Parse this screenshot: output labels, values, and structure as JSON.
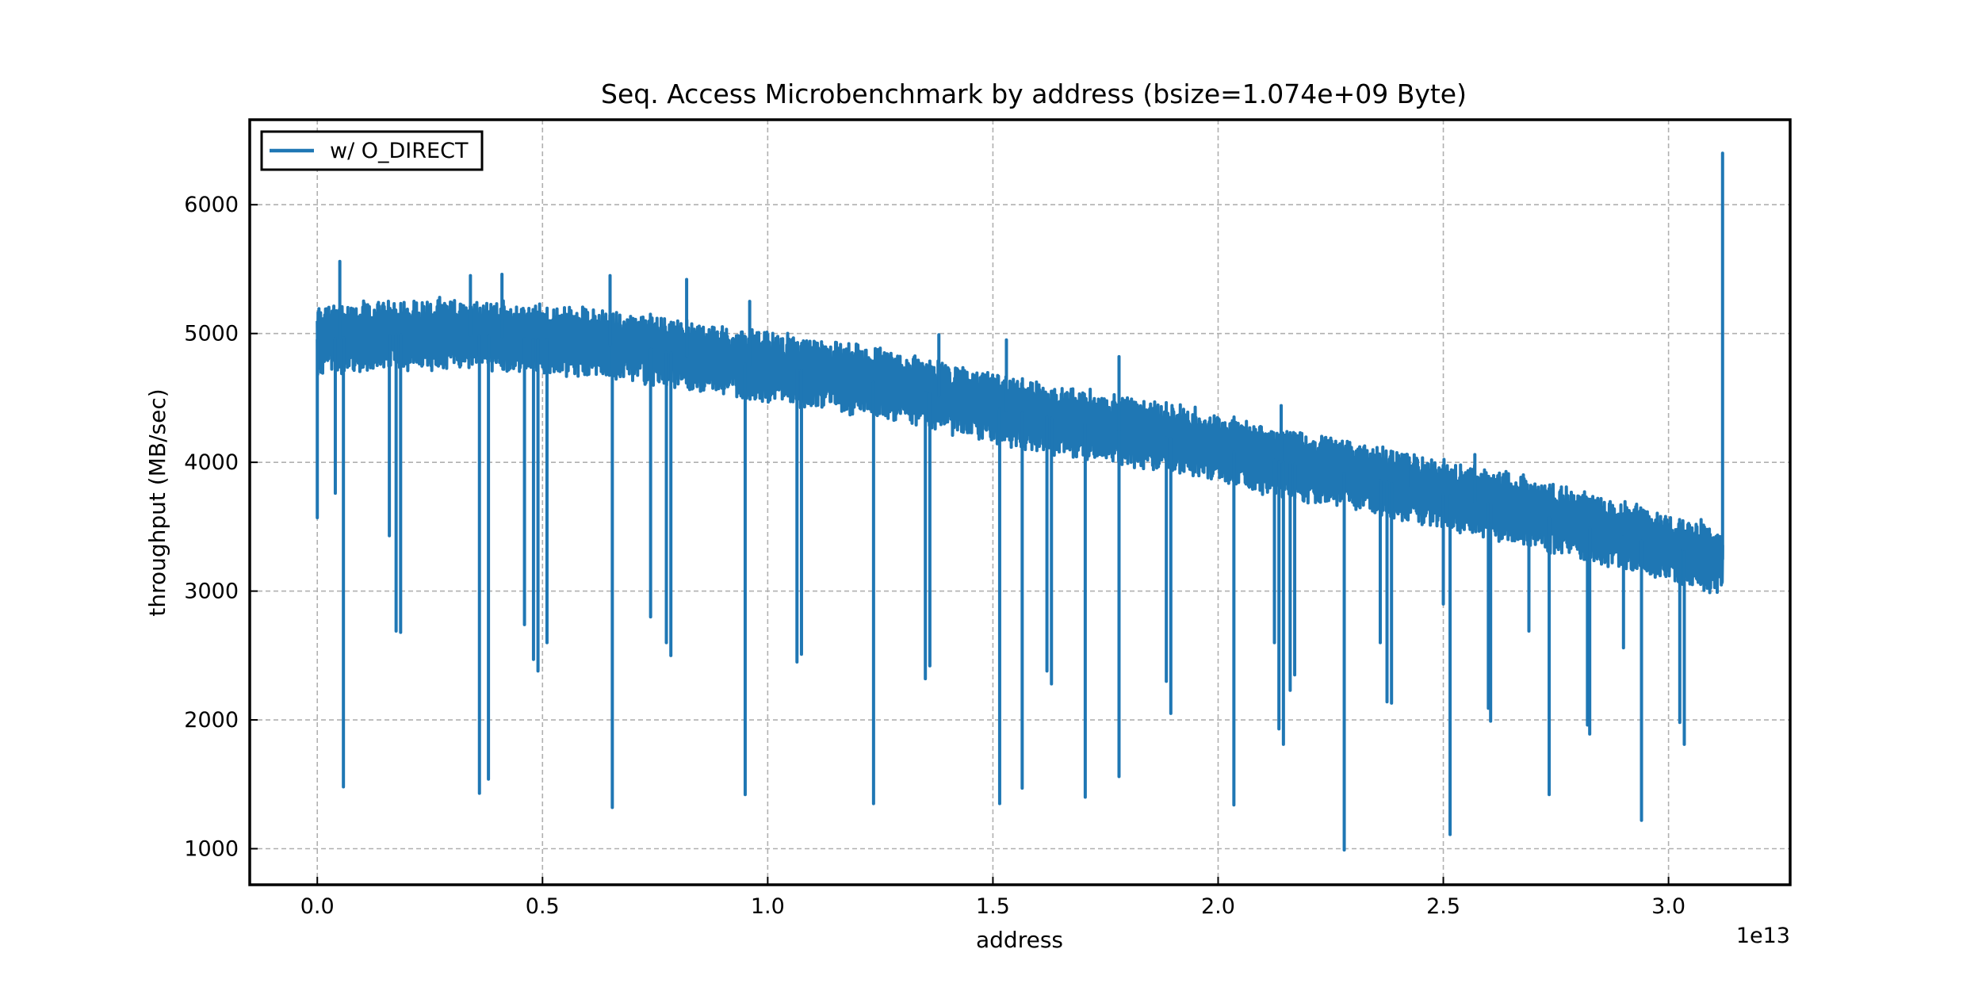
{
  "chart_data": {
    "type": "line",
    "title": "Seq. Access Microbenchmark by address (bsize=1.074e+09 Byte)",
    "xlabel": "address",
    "ylabel": "throughput (MB/sec)",
    "x_offset_label": "1e13",
    "x_scale": 10000000000000.0,
    "xlim": [
      -0.15,
      3.27
    ],
    "ylim": [
      720,
      6660
    ],
    "x_ticks": [
      0.0,
      0.5,
      1.0,
      1.5,
      2.0,
      2.5,
      3.0
    ],
    "x_tick_labels": [
      "0.0",
      "0.5",
      "1.0",
      "1.5",
      "2.0",
      "2.5",
      "3.0"
    ],
    "y_ticks": [
      1000,
      2000,
      3000,
      4000,
      5000,
      6000
    ],
    "y_tick_labels": [
      "1000",
      "2000",
      "3000",
      "4000",
      "5000",
      "6000"
    ],
    "grid": true,
    "legend_position": "top-left",
    "color": "#1f77b4",
    "series": [
      {
        "name": "w/ O_DIRECT",
        "x_units": "1e13 address",
        "trend": {
          "x": [
            0.0,
            0.1,
            0.3,
            0.5,
            0.7,
            0.9,
            1.1,
            1.3,
            1.5,
            1.7,
            1.9,
            2.1,
            2.3,
            2.5,
            2.7,
            2.9,
            3.1,
            3.12
          ],
          "y": [
            4950,
            4980,
            5000,
            4950,
            4900,
            4780,
            4700,
            4580,
            4420,
            4300,
            4180,
            4030,
            3900,
            3750,
            3600,
            3420,
            3250,
            3250
          ]
        },
        "dips": [
          {
            "x": 0.0,
            "y": 3570
          },
          {
            "x": 0.04,
            "y": 3760
          },
          {
            "x": 0.058,
            "y": 1480
          },
          {
            "x": 0.16,
            "y": 3430
          },
          {
            "x": 0.175,
            "y": 2690
          },
          {
            "x": 0.185,
            "y": 2680
          },
          {
            "x": 0.36,
            "y": 1430
          },
          {
            "x": 0.38,
            "y": 1540
          },
          {
            "x": 0.46,
            "y": 2740
          },
          {
            "x": 0.48,
            "y": 2470
          },
          {
            "x": 0.49,
            "y": 2380
          },
          {
            "x": 0.51,
            "y": 2600
          },
          {
            "x": 0.655,
            "y": 1320
          },
          {
            "x": 0.74,
            "y": 2800
          },
          {
            "x": 0.775,
            "y": 2600
          },
          {
            "x": 0.785,
            "y": 2500
          },
          {
            "x": 0.95,
            "y": 1420
          },
          {
            "x": 1.065,
            "y": 2450
          },
          {
            "x": 1.075,
            "y": 2510
          },
          {
            "x": 1.235,
            "y": 1350
          },
          {
            "x": 1.35,
            "y": 2320
          },
          {
            "x": 1.36,
            "y": 2420
          },
          {
            "x": 1.515,
            "y": 1350
          },
          {
            "x": 1.565,
            "y": 1470
          },
          {
            "x": 1.62,
            "y": 2380
          },
          {
            "x": 1.63,
            "y": 2280
          },
          {
            "x": 1.705,
            "y": 1400
          },
          {
            "x": 1.78,
            "y": 1560
          },
          {
            "x": 1.885,
            "y": 2300
          },
          {
            "x": 1.895,
            "y": 2050
          },
          {
            "x": 2.035,
            "y": 1340
          },
          {
            "x": 2.125,
            "y": 2600
          },
          {
            "x": 2.135,
            "y": 1930
          },
          {
            "x": 2.145,
            "y": 1810
          },
          {
            "x": 2.16,
            "y": 2230
          },
          {
            "x": 2.17,
            "y": 2350
          },
          {
            "x": 2.28,
            "y": 990
          },
          {
            "x": 2.36,
            "y": 2600
          },
          {
            "x": 2.375,
            "y": 2140
          },
          {
            "x": 2.385,
            "y": 2130
          },
          {
            "x": 2.5,
            "y": 2900
          },
          {
            "x": 2.515,
            "y": 1110
          },
          {
            "x": 2.6,
            "y": 2090
          },
          {
            "x": 2.605,
            "y": 1990
          },
          {
            "x": 2.69,
            "y": 2690
          },
          {
            "x": 2.735,
            "y": 1420
          },
          {
            "x": 2.82,
            "y": 1960
          },
          {
            "x": 2.825,
            "y": 1890
          },
          {
            "x": 2.9,
            "y": 2560
          },
          {
            "x": 2.94,
            "y": 1220
          },
          {
            "x": 3.025,
            "y": 1980
          },
          {
            "x": 3.035,
            "y": 1810
          }
        ],
        "spikes": [
          {
            "x": 0.05,
            "y": 5560
          },
          {
            "x": 0.34,
            "y": 5450
          },
          {
            "x": 0.41,
            "y": 5460
          },
          {
            "x": 0.65,
            "y": 5450
          },
          {
            "x": 0.82,
            "y": 5420
          },
          {
            "x": 0.96,
            "y": 5250
          },
          {
            "x": 1.38,
            "y": 4990
          },
          {
            "x": 1.53,
            "y": 4950
          },
          {
            "x": 1.78,
            "y": 4820
          },
          {
            "x": 2.14,
            "y": 4440
          },
          {
            "x": 2.42,
            "y": 4060
          },
          {
            "x": 2.57,
            "y": 4060
          },
          {
            "x": 3.12,
            "y": 6400
          }
        ]
      }
    ]
  }
}
